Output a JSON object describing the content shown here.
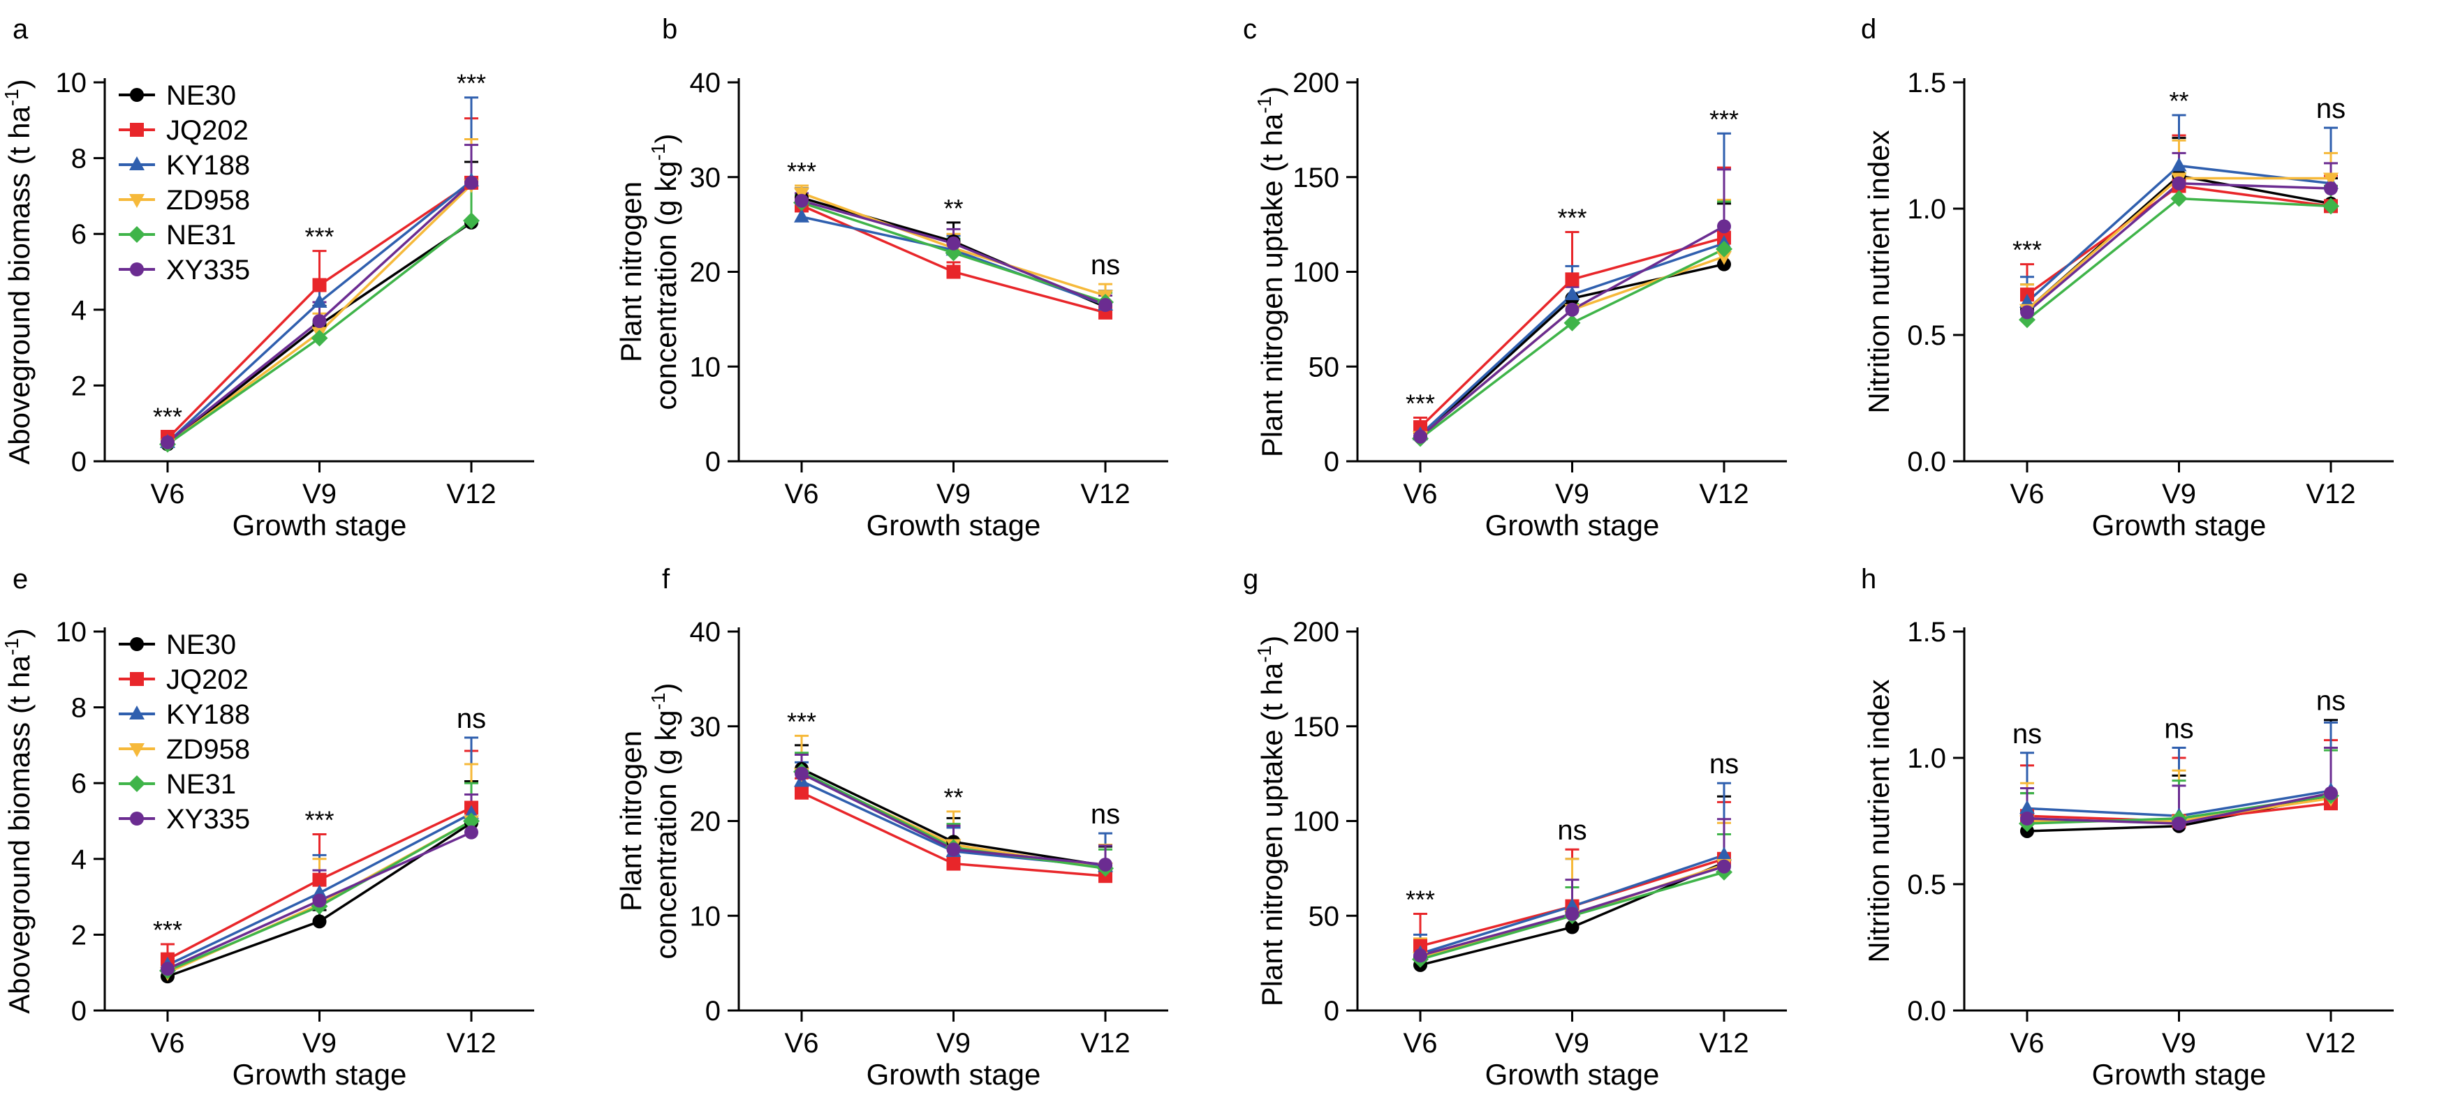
{
  "figure": {
    "x_axis_label": "Growth stage",
    "stages": [
      "V6",
      "V9",
      "V12"
    ]
  },
  "legend": {
    "placement": "top-left",
    "entries": [
      "NE30",
      "JQ202",
      "KY188",
      "ZD958",
      "NE31",
      "XY335"
    ]
  },
  "series_style": {
    "NE30": {
      "color": "#000000",
      "marker": "circle"
    },
    "JQ202": {
      "color": "#e8262a",
      "marker": "square"
    },
    "KY188": {
      "color": "#2f5fae",
      "marker": "triangle"
    },
    "ZD958": {
      "color": "#f6b93a",
      "marker": "triangle-down"
    },
    "NE31": {
      "color": "#3fb449",
      "marker": "diamond"
    },
    "XY335": {
      "color": "#6b2c91",
      "marker": "circle"
    }
  },
  "chart_data": [
    {
      "id": "a",
      "type": "line",
      "title": "a",
      "ylabel": [
        "Aboveground biomass (t ha",
        "-1",
        ")"
      ],
      "xlabel": "Growth stage",
      "categories": [
        "V6",
        "V9",
        "V12"
      ],
      "ylim": [
        0,
        10
      ],
      "yticks": [
        0,
        2,
        4,
        6,
        8,
        10
      ],
      "ytick_decimals": 0,
      "significance": [
        "***",
        "***",
        "***"
      ],
      "legend": true,
      "series": [
        {
          "name": "NE30",
          "values": [
            0.45,
            3.6,
            6.3
          ],
          "errors": [
            0.15,
            0.5,
            1.6
          ]
        },
        {
          "name": "JQ202",
          "values": [
            0.6,
            4.65,
            7.35
          ],
          "errors": [
            0.2,
            0.9,
            1.7
          ]
        },
        {
          "name": "KY188",
          "values": [
            0.5,
            4.2,
            7.4
          ],
          "errors": [
            0.15,
            0.6,
            2.2
          ]
        },
        {
          "name": "ZD958",
          "values": [
            0.45,
            3.4,
            7.3
          ],
          "errors": [
            0.15,
            0.5,
            1.2
          ]
        },
        {
          "name": "NE31",
          "values": [
            0.45,
            3.25,
            6.35
          ],
          "errors": [
            0.15,
            0.4,
            1.0
          ]
        },
        {
          "name": "XY335",
          "values": [
            0.5,
            3.7,
            7.35
          ],
          "errors": [
            0.15,
            0.5,
            1.0
          ]
        }
      ]
    },
    {
      "id": "b",
      "type": "line",
      "title": "b",
      "ylabel": [
        "Plant nitrogen",
        "concentration (g kg",
        "-1",
        ")"
      ],
      "xlabel": "Growth stage",
      "categories": [
        "V6",
        "V9",
        "V12"
      ],
      "ylim": [
        0,
        40
      ],
      "yticks": [
        0,
        10,
        20,
        30,
        40
      ],
      "ytick_decimals": 0,
      "significance": [
        "***",
        "**",
        "ns"
      ],
      "legend": false,
      "series": [
        {
          "name": "NE30",
          "values": [
            27.8,
            23.2,
            16.3
          ],
          "errors": [
            1.0,
            2.0,
            1.5
          ]
        },
        {
          "name": "JQ202",
          "values": [
            27.0,
            20.0,
            15.7
          ],
          "errors": [
            1.0,
            1.0,
            1.0
          ]
        },
        {
          "name": "KY188",
          "values": [
            25.8,
            22.3,
            16.5
          ],
          "errors": [
            1.0,
            1.5,
            1.5
          ]
        },
        {
          "name": "ZD958",
          "values": [
            28.3,
            22.5,
            17.5
          ],
          "errors": [
            0.8,
            1.5,
            1.2
          ]
        },
        {
          "name": "NE31",
          "values": [
            27.3,
            22.0,
            16.8
          ],
          "errors": [
            0.8,
            1.5,
            1.0
          ]
        },
        {
          "name": "XY335",
          "values": [
            27.5,
            23.0,
            16.5
          ],
          "errors": [
            0.8,
            1.5,
            1.0
          ]
        }
      ]
    },
    {
      "id": "c",
      "type": "line",
      "title": "c",
      "ylabel": [
        "Plant nitrogen uptake (t ha",
        "-1",
        ")"
      ],
      "xlabel": "Growth stage",
      "categories": [
        "V6",
        "V9",
        "V12"
      ],
      "ylim": [
        0,
        200
      ],
      "yticks": [
        0,
        50,
        100,
        150,
        200
      ],
      "ytick_decimals": 0,
      "significance": [
        "***",
        "***",
        "***"
      ],
      "legend": false,
      "series": [
        {
          "name": "NE30",
          "values": [
            13,
            86,
            104
          ],
          "errors": [
            3,
            12,
            32
          ]
        },
        {
          "name": "JQ202",
          "values": [
            18,
            96,
            118
          ],
          "errors": [
            5,
            25,
            37
          ]
        },
        {
          "name": "KY188",
          "values": [
            14,
            88,
            115
          ],
          "errors": [
            4,
            15,
            58
          ]
        },
        {
          "name": "ZD958",
          "values": [
            13,
            80,
            108
          ],
          "errors": [
            4,
            15,
            30
          ]
        },
        {
          "name": "NE31",
          "values": [
            12,
            73,
            112
          ],
          "errors": [
            3,
            10,
            25
          ]
        },
        {
          "name": "XY335",
          "values": [
            13,
            80,
            124
          ],
          "errors": [
            3,
            12,
            30
          ]
        }
      ]
    },
    {
      "id": "d",
      "type": "line",
      "title": "d",
      "ylabel": [
        "Nitrition nutrient index"
      ],
      "xlabel": "Growth stage",
      "categories": [
        "V6",
        "V9",
        "V12"
      ],
      "ylim": [
        0,
        1.5
      ],
      "yticks": [
        0,
        0.5,
        1.0,
        1.5
      ],
      "ytick_decimals": 1,
      "significance": [
        "***",
        "**",
        "ns"
      ],
      "legend": false,
      "series": [
        {
          "name": "NE30",
          "values": [
            0.6,
            1.13,
            1.02
          ],
          "errors": [
            0.1,
            0.15,
            0.1
          ]
        },
        {
          "name": "JQ202",
          "values": [
            0.66,
            1.09,
            1.01
          ],
          "errors": [
            0.12,
            0.2,
            0.12
          ]
        },
        {
          "name": "KY188",
          "values": [
            0.63,
            1.17,
            1.1
          ],
          "errors": [
            0.1,
            0.2,
            0.22
          ]
        },
        {
          "name": "ZD958",
          "values": [
            0.6,
            1.12,
            1.12
          ],
          "errors": [
            0.1,
            0.15,
            0.1
          ]
        },
        {
          "name": "NE31",
          "values": [
            0.56,
            1.04,
            1.01
          ],
          "errors": [
            0.08,
            0.1,
            0.08
          ]
        },
        {
          "name": "XY335",
          "values": [
            0.59,
            1.1,
            1.08
          ],
          "errors": [
            0.08,
            0.12,
            0.1
          ]
        }
      ]
    },
    {
      "id": "e",
      "type": "line",
      "title": "e",
      "ylabel": [
        "Aboveground biomass (t ha",
        "-1",
        ")"
      ],
      "xlabel": "Growth stage",
      "categories": [
        "V6",
        "V9",
        "V12"
      ],
      "ylim": [
        0,
        10
      ],
      "yticks": [
        0,
        2,
        4,
        6,
        8,
        10
      ],
      "ytick_decimals": 0,
      "significance": [
        "***",
        "***",
        "ns"
      ],
      "legend": true,
      "series": [
        {
          "name": "NE30",
          "values": [
            0.9,
            2.35,
            4.95
          ],
          "errors": [
            0.15,
            0.3,
            1.1
          ]
        },
        {
          "name": "JQ202",
          "values": [
            1.35,
            3.45,
            5.35
          ],
          "errors": [
            0.4,
            1.2,
            1.5
          ]
        },
        {
          "name": "KY188",
          "values": [
            1.2,
            3.1,
            5.2
          ],
          "errors": [
            0.3,
            1.0,
            2.0
          ]
        },
        {
          "name": "ZD958",
          "values": [
            1.0,
            2.8,
            5.0
          ],
          "errors": [
            0.25,
            1.2,
            1.5
          ]
        },
        {
          "name": "NE31",
          "values": [
            1.05,
            2.75,
            5.0
          ],
          "errors": [
            0.25,
            0.8,
            1.0
          ]
        },
        {
          "name": "XY335",
          "values": [
            1.1,
            2.9,
            4.7
          ],
          "errors": [
            0.25,
            0.8,
            1.0
          ]
        }
      ]
    },
    {
      "id": "f",
      "type": "line",
      "title": "f",
      "ylabel": [
        "Plant nitrogen",
        "concentration (g kg",
        "-1",
        ")"
      ],
      "xlabel": "Growth stage",
      "categories": [
        "V6",
        "V9",
        "V12"
      ],
      "ylim": [
        0,
        40
      ],
      "yticks": [
        0,
        10,
        20,
        30,
        40
      ],
      "ytick_decimals": 0,
      "significance": [
        "***",
        "**",
        "ns"
      ],
      "legend": false,
      "series": [
        {
          "name": "NE30",
          "values": [
            25.5,
            17.8,
            15.3
          ],
          "errors": [
            2.5,
            2.5,
            2.0
          ]
        },
        {
          "name": "JQ202",
          "values": [
            23.0,
            15.5,
            14.2
          ],
          "errors": [
            1.5,
            1.5,
            1.2
          ]
        },
        {
          "name": "KY188",
          "values": [
            24.2,
            16.8,
            15.2
          ],
          "errors": [
            2.0,
            2.5,
            3.5
          ]
        },
        {
          "name": "ZD958",
          "values": [
            25.0,
            17.5,
            15.0
          ],
          "errors": [
            4.0,
            3.5,
            2.5
          ]
        },
        {
          "name": "NE31",
          "values": [
            25.2,
            17.2,
            15.0
          ],
          "errors": [
            2.0,
            2.5,
            2.0
          ]
        },
        {
          "name": "XY335",
          "values": [
            25.0,
            17.0,
            15.4
          ],
          "errors": [
            2.0,
            2.5,
            2.0
          ]
        }
      ]
    },
    {
      "id": "g",
      "type": "line",
      "title": "g",
      "ylabel": [
        "Plant nitrogen uptake (t ha",
        "-1",
        ")"
      ],
      "xlabel": "Growth stage",
      "categories": [
        "V6",
        "V9",
        "V12"
      ],
      "ylim": [
        0,
        200
      ],
      "yticks": [
        0,
        50,
        100,
        150,
        200
      ],
      "ytick_decimals": 0,
      "significance": [
        "***",
        "ns",
        "ns"
      ],
      "legend": false,
      "series": [
        {
          "name": "NE30",
          "values": [
            24,
            44,
            78
          ],
          "errors": [
            4,
            10,
            35
          ]
        },
        {
          "name": "JQ202",
          "values": [
            34,
            55,
            80
          ],
          "errors": [
            17,
            30,
            30
          ]
        },
        {
          "name": "KY188",
          "values": [
            30,
            55,
            82
          ],
          "errors": [
            10,
            25,
            38
          ]
        },
        {
          "name": "ZD958",
          "values": [
            28,
            50,
            77
          ],
          "errors": [
            10,
            30,
            22
          ]
        },
        {
          "name": "NE31",
          "values": [
            27,
            50,
            73
          ],
          "errors": [
            7,
            15,
            20
          ]
        },
        {
          "name": "XY335",
          "values": [
            29,
            51,
            76
          ],
          "errors": [
            7,
            18,
            25
          ]
        }
      ]
    },
    {
      "id": "h",
      "type": "line",
      "title": "h",
      "ylabel": [
        "Nitrition nutrient index"
      ],
      "xlabel": "Growth stage",
      "categories": [
        "V6",
        "V9",
        "V12"
      ],
      "ylim": [
        0,
        1.5
      ],
      "yticks": [
        0,
        0.5,
        1.0,
        1.5
      ],
      "ytick_decimals": 1,
      "significance": [
        "ns",
        "ns",
        "ns"
      ],
      "legend": false,
      "series": [
        {
          "name": "NE30",
          "values": [
            0.71,
            0.73,
            0.85
          ],
          "errors": [
            0.15,
            0.2,
            0.3
          ]
        },
        {
          "name": "JQ202",
          "values": [
            0.77,
            0.75,
            0.82
          ],
          "errors": [
            0.2,
            0.25,
            0.25
          ]
        },
        {
          "name": "KY188",
          "values": [
            0.8,
            0.77,
            0.87
          ],
          "errors": [
            0.22,
            0.27,
            0.27
          ]
        },
        {
          "name": "ZD958",
          "values": [
            0.75,
            0.75,
            0.84
          ],
          "errors": [
            0.15,
            0.2,
            0.2
          ]
        },
        {
          "name": "NE31",
          "values": [
            0.74,
            0.76,
            0.85
          ],
          "errors": [
            0.12,
            0.15,
            0.18
          ]
        },
        {
          "name": "XY335",
          "values": [
            0.76,
            0.74,
            0.86
          ],
          "errors": [
            0.12,
            0.15,
            0.18
          ]
        }
      ]
    }
  ]
}
